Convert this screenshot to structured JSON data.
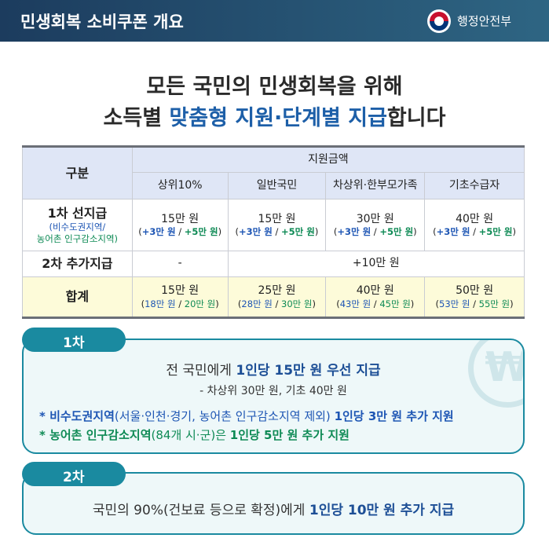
{
  "header": {
    "title": "민생회복 소비쿠폰 개요",
    "org": "행정안전부"
  },
  "headline": {
    "line1": "모든 국민의 민생회복을 위해",
    "line2_prefix": "소득별 ",
    "line2_highlight": "맞춤형 지원·단계별 지급",
    "line2_suffix": "합니다"
  },
  "table": {
    "corner": "구분",
    "group": "지원금액",
    "columns": [
      "상위10%",
      "일반국민",
      "차상위·한부모가족",
      "기초수급자"
    ],
    "row1": {
      "label": "1차 선지급",
      "sub_blue": "(비수도권지역/",
      "sub_green": "농어촌 인구감소지역)",
      "cells": [
        {
          "main": "15만 원",
          "a": "+3만 원",
          "b": "+5만 원"
        },
        {
          "main": "15만 원",
          "a": "+3만 원",
          "b": "+5만 원"
        },
        {
          "main": "30만 원",
          "a": "+3만 원",
          "b": "+5만 원"
        },
        {
          "main": "40만 원",
          "a": "+3만 원",
          "b": "+5만 원"
        }
      ]
    },
    "row2": {
      "label": "2차 추가지급",
      "first": "-",
      "rest": "+10만 원"
    },
    "total": {
      "label": "합계",
      "cells": [
        {
          "main": "15만 원",
          "a": "18만 원",
          "b": "20만 원"
        },
        {
          "main": "25만 원",
          "a": "28만 원",
          "b": "30만 원"
        },
        {
          "main": "40만 원",
          "a": "43만 원",
          "b": "45만 원"
        },
        {
          "main": "50만 원",
          "a": "53만 원",
          "b": "55만 원"
        }
      ]
    }
  },
  "phase1": {
    "tab": "1차",
    "main_prefix": "전 국민에게 ",
    "main_bold": "1인당 15만 원 우선 지급",
    "sub": "- 차상위 30만 원, 기초 40만 원",
    "note1_bold": "* 비수도권지역",
    "note1_mid": "(서울·인천·경기, 농어촌 인구감소지역 제외) ",
    "note1_end": "1인당 3만 원 추가 지원",
    "note2_bold": "* 농어촌 인구감소지역",
    "note2_mid": "(84개 시·군)은 ",
    "note2_end": "1인당 5만 원 추가 지원",
    "icon": "won-coin-icon"
  },
  "phase2": {
    "tab": "2차",
    "main_prefix": "국민의 90%(건보료 등으로 확정)에게 ",
    "main_bold": "1인당 10만 원 추가 지급"
  },
  "colors": {
    "header": "#1c3c5e",
    "accent": "#1d5fa8",
    "teal": "#1a8aa0",
    "green": "#0e8a55",
    "total_bg": "#fdfbd9",
    "header_bg": "#dfe6f6"
  }
}
